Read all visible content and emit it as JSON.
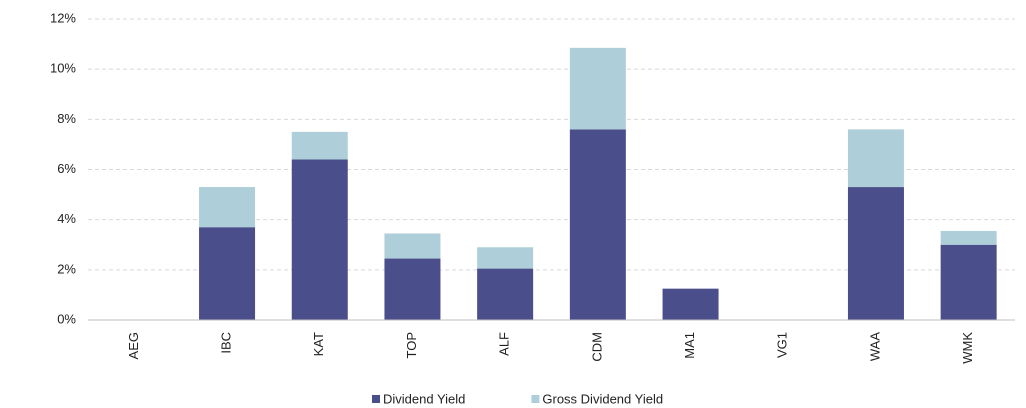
{
  "chart_data": {
    "type": "stacked_bar",
    "categories": [
      "AEG",
      "IBC",
      "KAT",
      "TOP",
      "ALF",
      "CDM",
      "MA1",
      "VG1",
      "WAA",
      "WMK"
    ],
    "series": [
      {
        "name": "Dividend Yield",
        "color": "#4a4e8a",
        "values": [
          0,
          3.7,
          6.4,
          2.45,
          2.05,
          7.6,
          1.25,
          0,
          5.3,
          3.0
        ]
      },
      {
        "name": "Gross Dividend Yield",
        "color": "#aecfd9",
        "values": [
          0,
          1.6,
          1.1,
          1.0,
          0.85,
          3.25,
          0,
          0,
          2.3,
          0.55
        ]
      }
    ],
    "ylim": [
      0,
      12
    ],
    "yticks": [
      {
        "value": 0,
        "label": "0%"
      },
      {
        "value": 2,
        "label": "2%"
      },
      {
        "value": 4,
        "label": "4%"
      },
      {
        "value": 6,
        "label": "6%"
      },
      {
        "value": 8,
        "label": "8%"
      },
      {
        "value": 10,
        "label": "10%"
      },
      {
        "value": 12,
        "label": "12%"
      }
    ],
    "grid": true,
    "legend": "bottom"
  }
}
